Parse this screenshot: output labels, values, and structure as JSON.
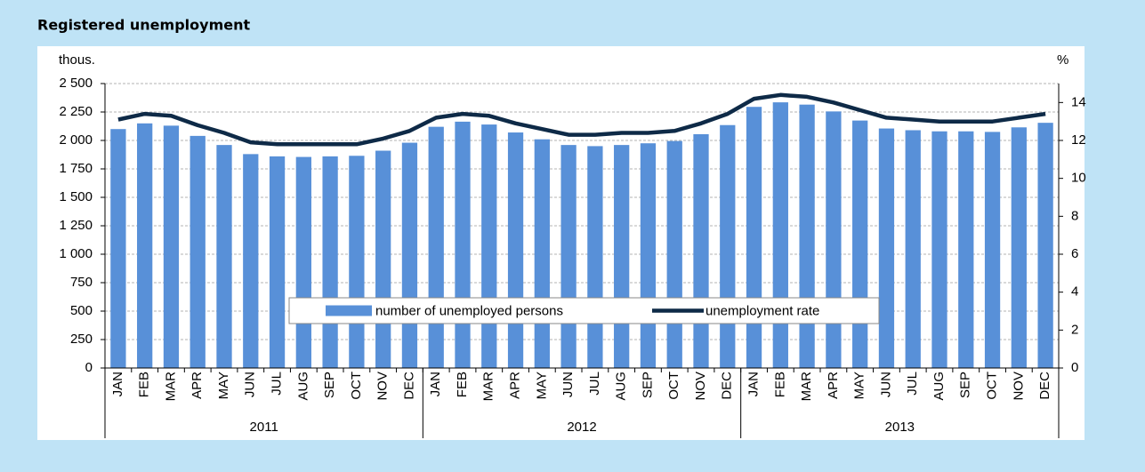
{
  "chart_data": {
    "type": "bar-line",
    "title": "Registered unemployment",
    "y_label": "thous.",
    "y2_label": "%",
    "categories": [
      "JAN",
      "FEB",
      "MAR",
      "APR",
      "MAY",
      "JUN",
      "JUL",
      "AUG",
      "SEP",
      "OCT",
      "NOV",
      "DEC",
      "JAN",
      "FEB",
      "MAR",
      "APR",
      "MAY",
      "JUN",
      "JUL",
      "AUG",
      "SEP",
      "OCT",
      "NOV",
      "DEC",
      "JAN",
      "FEB",
      "MAR",
      "APR",
      "MAY",
      "JUN",
      "JUL",
      "AUG",
      "SEP",
      "OCT",
      "NOV",
      "DEC"
    ],
    "groups": [
      "2011",
      "2012",
      "2013"
    ],
    "series": [
      {
        "name": "number of unemployed persons",
        "type": "bar",
        "color": "#5890d8",
        "values": [
          2100,
          2150,
          2130,
          2040,
          1960,
          1880,
          1860,
          1855,
          1860,
          1865,
          1910,
          1980,
          2120,
          2165,
          2140,
          2070,
          2010,
          1960,
          1950,
          1960,
          1975,
          1995,
          2055,
          2135,
          2295,
          2335,
          2315,
          2255,
          2175,
          2105,
          2090,
          2080,
          2080,
          2075,
          2115,
          2155
        ]
      },
      {
        "name": "unemployment rate",
        "type": "line",
        "axis": "y2",
        "color": "#0e2a47",
        "values": [
          13.1,
          13.4,
          13.3,
          12.8,
          12.4,
          11.9,
          11.8,
          11.8,
          11.8,
          11.8,
          12.1,
          12.5,
          13.2,
          13.4,
          13.3,
          12.9,
          12.6,
          12.3,
          12.3,
          12.4,
          12.4,
          12.5,
          12.9,
          13.4,
          14.2,
          14.4,
          14.3,
          14.0,
          13.6,
          13.2,
          13.1,
          13.0,
          13.0,
          13.0,
          13.2,
          13.4
        ]
      }
    ],
    "ylim": [
      0,
      2500
    ],
    "yticks": [
      0,
      250,
      500,
      750,
      {
        "value": 1000,
        "label": "1 000"
      },
      {
        "value": 1250,
        "label": "1 250"
      },
      {
        "value": 1500,
        "label": "1 500"
      },
      {
        "value": 1750,
        "label": "1 750"
      },
      {
        "value": 2000,
        "label": "2 000"
      },
      {
        "value": 2250,
        "label": "2 250"
      },
      {
        "value": 2500,
        "label": "2 500"
      }
    ],
    "y2lim": [
      0,
      15
    ],
    "y2ticks": [
      0,
      2,
      4,
      6,
      8,
      10,
      12,
      14
    ],
    "grid": true
  }
}
